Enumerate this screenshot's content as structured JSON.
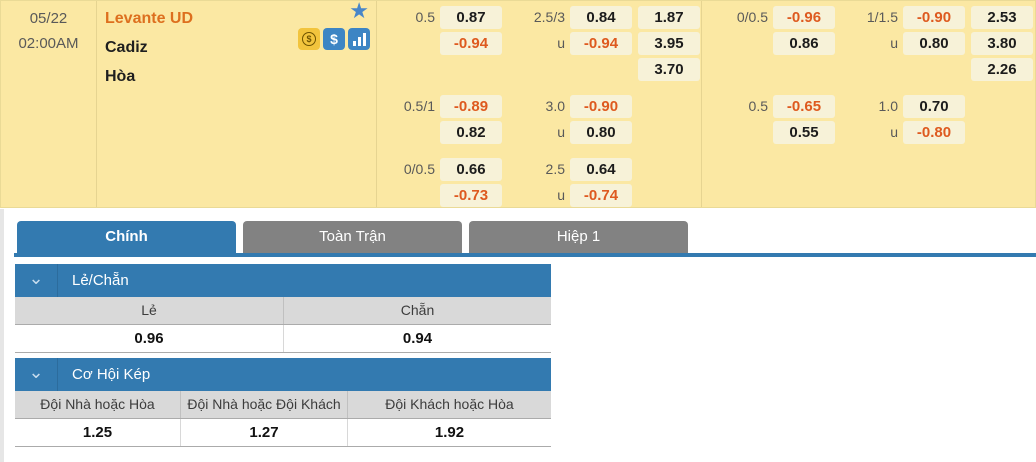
{
  "glyphs": {
    "star": "★",
    "dollar": "$",
    "chevron": "⌄"
  },
  "colors": {
    "board_bg": "#FBE8A3",
    "cell_bg": "#F7F2D8",
    "accent_blue": "#337AB0",
    "negative_orange": "#DE5A1F",
    "home_team_orange": "#DD6F1E",
    "inactive_gray": "#828282"
  },
  "match": {
    "date": "05/22",
    "time": "02:00AM",
    "home": "Levante UD",
    "away": "Cadiz",
    "draw": "Hòa"
  },
  "odds": {
    "left": {
      "groups": [
        {
          "rows": [
            {
              "line": "0.5",
              "lv": "0.87",
              "ou": "2.5/3",
              "ov": "0.84",
              "x": "1.87"
            },
            {
              "line": "",
              "lv": "-0.94",
              "ou": "u",
              "ov": "-0.94",
              "x": "3.95"
            },
            {
              "line": "",
              "lv": "",
              "ou": "",
              "ov": "",
              "x": "3.70"
            }
          ]
        },
        {
          "rows": [
            {
              "line": "0.5/1",
              "lv": "-0.89",
              "ou": "3.0",
              "ov": "-0.90",
              "x": ""
            },
            {
              "line": "",
              "lv": "0.82",
              "ou": "u",
              "ov": "0.80",
              "x": ""
            }
          ]
        },
        {
          "rows": [
            {
              "line": "0/0.5",
              "lv": "0.66",
              "ou": "2.5",
              "ov": "0.64",
              "x": ""
            },
            {
              "line": "",
              "lv": "-0.73",
              "ou": "u",
              "ov": "-0.74",
              "x": ""
            }
          ]
        }
      ]
    },
    "right": {
      "groups": [
        {
          "rows": [
            {
              "line": "0/0.5",
              "lv": "-0.96",
              "ou": "1/1.5",
              "ov": "-0.90",
              "x": "2.53"
            },
            {
              "line": "",
              "lv": "0.86",
              "ou": "u",
              "ov": "0.80",
              "x": "3.80"
            },
            {
              "line": "",
              "lv": "",
              "ou": "",
              "ov": "",
              "x": "2.26"
            }
          ]
        },
        {
          "rows": [
            {
              "line": "0.5",
              "lv": "-0.65",
              "ou": "1.0",
              "ov": "0.70",
              "x": ""
            },
            {
              "line": "",
              "lv": "0.55",
              "ou": "u",
              "ov": "-0.80",
              "x": ""
            }
          ]
        }
      ]
    }
  },
  "tabs": [
    {
      "label": "Chính",
      "active": true
    },
    {
      "label": "Toàn Trận",
      "active": false
    },
    {
      "label": "Hiệp 1",
      "active": false
    }
  ],
  "sections": [
    {
      "title": "Lẻ/Chẵn",
      "headers": [
        "Lẻ",
        "Chẵn"
      ],
      "values": [
        "0.96",
        "0.94"
      ]
    },
    {
      "title": "Cơ Hội Kép",
      "headers": [
        "Đội Nhà hoặc Hòa",
        "Đội Nhà hoặc Đội Khách",
        "Đội Khách hoặc Hòa"
      ],
      "values": [
        "1.25",
        "1.27",
        "1.92"
      ]
    }
  ]
}
